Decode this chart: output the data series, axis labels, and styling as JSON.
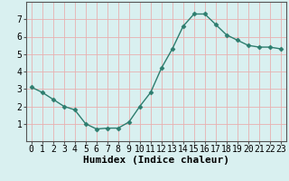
{
  "x": [
    0,
    1,
    2,
    3,
    4,
    5,
    6,
    7,
    8,
    9,
    10,
    11,
    12,
    13,
    14,
    15,
    16,
    17,
    18,
    19,
    20,
    21,
    22,
    23
  ],
  "y": [
    3.1,
    2.8,
    2.4,
    2.0,
    1.8,
    1.0,
    0.7,
    0.75,
    0.75,
    1.1,
    2.0,
    2.8,
    4.2,
    5.3,
    6.6,
    7.3,
    7.3,
    6.7,
    6.1,
    5.8,
    5.5,
    5.4,
    5.4,
    5.3
  ],
  "line_color": "#2d7d6e",
  "marker": "D",
  "marker_size": 2.5,
  "bg_color": "#d9f0f0",
  "grid_color": "#e8b0b0",
  "xlabel": "Humidex (Indice chaleur)",
  "ylim": [
    0,
    8
  ],
  "xlim": [
    -0.5,
    23.5
  ],
  "yticks": [
    1,
    2,
    3,
    4,
    5,
    6,
    7
  ],
  "xticks": [
    0,
    1,
    2,
    3,
    4,
    5,
    6,
    7,
    8,
    9,
    10,
    11,
    12,
    13,
    14,
    15,
    16,
    17,
    18,
    19,
    20,
    21,
    22,
    23
  ],
  "xlabel_fontsize": 8,
  "tick_fontsize": 7,
  "axis_color": "#555555",
  "linewidth": 1.0
}
